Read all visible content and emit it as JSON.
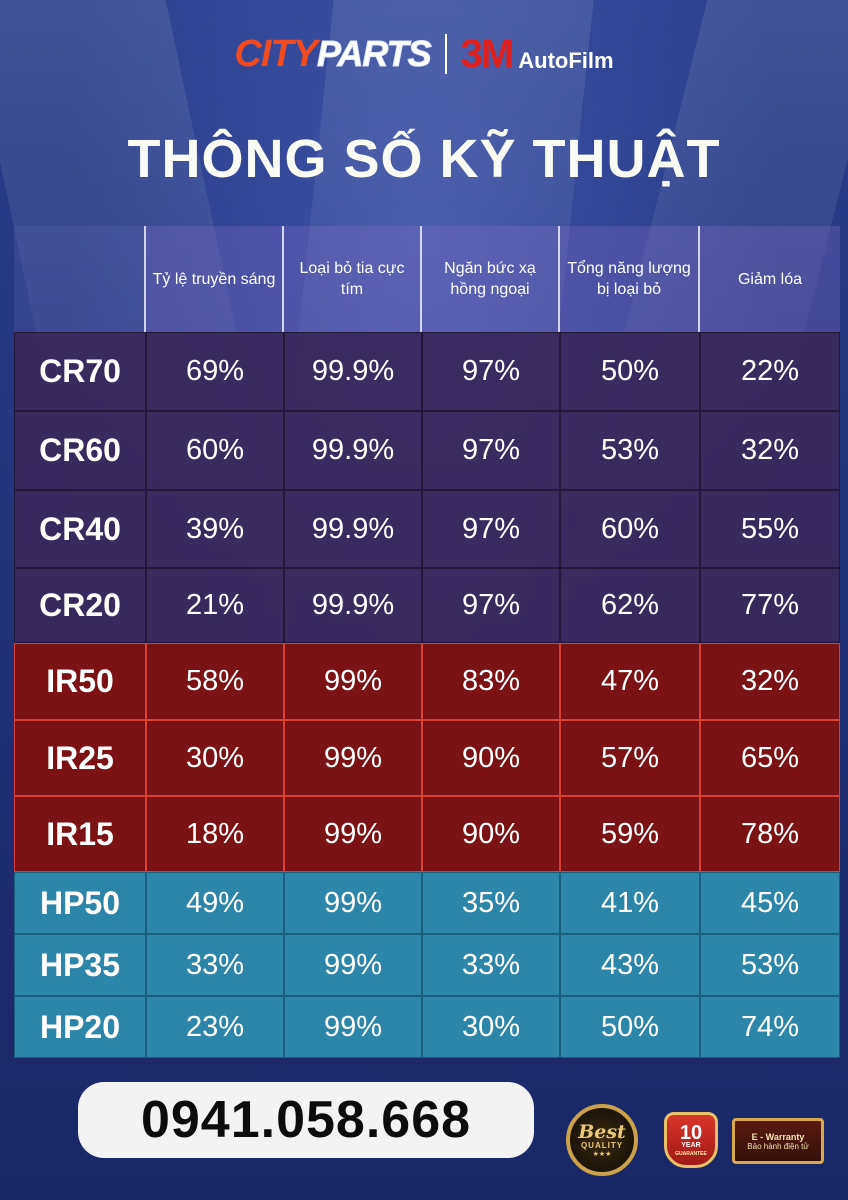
{
  "brand": {
    "city": "CITY",
    "parts": "PARTS",
    "mark": "3M",
    "autofilm": "AutoFilm"
  },
  "title": "THÔNG SỐ KỸ THUẬT",
  "table": {
    "headers": [
      "",
      "Tỷ lệ truyền sáng",
      "Loại bỏ tia cực tím",
      "Ngăn bức xạ hồng ngoại",
      "Tổng năng lượng bị loại bỏ",
      "Giảm lóa"
    ],
    "rows": [
      {
        "model": "CR70",
        "group": "cr",
        "values": [
          "69%",
          "99.9%",
          "97%",
          "50%",
          "22%"
        ]
      },
      {
        "model": "CR60",
        "group": "cr",
        "values": [
          "60%",
          "99.9%",
          "97%",
          "53%",
          "32%"
        ]
      },
      {
        "model": "CR40",
        "group": "cr",
        "values": [
          "39%",
          "99.9%",
          "97%",
          "60%",
          "55%"
        ]
      },
      {
        "model": "CR20",
        "group": "cr",
        "values": [
          "21%",
          "99.9%",
          "97%",
          "62%",
          "77%"
        ]
      },
      {
        "model": "IR50",
        "group": "ir",
        "values": [
          "58%",
          "99%",
          "83%",
          "47%",
          "32%"
        ]
      },
      {
        "model": "IR25",
        "group": "ir",
        "values": [
          "30%",
          "99%",
          "90%",
          "57%",
          "65%"
        ]
      },
      {
        "model": "IR15",
        "group": "ir",
        "values": [
          "18%",
          "99%",
          "90%",
          "59%",
          "78%"
        ]
      },
      {
        "model": "HP50",
        "group": "hp",
        "values": [
          "49%",
          "99%",
          "35%",
          "41%",
          "45%"
        ]
      },
      {
        "model": "HP35",
        "group": "hp",
        "values": [
          "33%",
          "99%",
          "33%",
          "43%",
          "53%"
        ]
      },
      {
        "model": "HP20",
        "group": "hp",
        "values": [
          "23%",
          "99%",
          "30%",
          "50%",
          "74%"
        ]
      }
    ]
  },
  "contact": {
    "phone": "0941.058.668"
  },
  "badges": {
    "best_line1": "Best",
    "best_line2": "QUALITY",
    "best_stars": "★★★",
    "year_number": "10",
    "year_label": "YEAR",
    "year_guarantee": "GUARANTEE",
    "warranty_line1": "E - Warranty",
    "warranty_line2": "Bảo hành điện tử"
  },
  "colors": {
    "cr_row": "#3a285c",
    "ir_row": "#7b1216",
    "hp_row": "#2d86aa",
    "title_text": "#fbfbf5"
  }
}
